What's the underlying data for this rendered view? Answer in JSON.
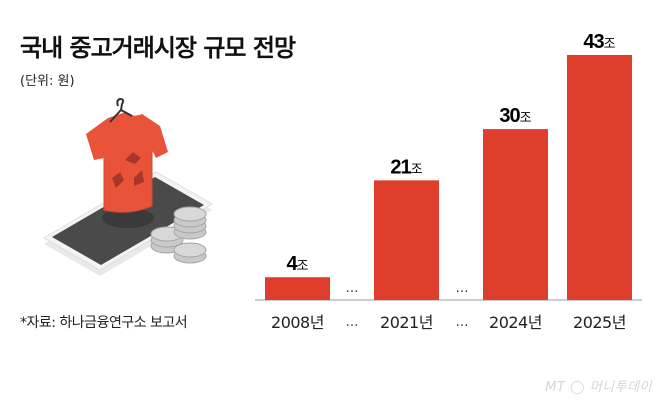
{
  "header": {
    "title": "국내 중고거래시장 규모 전망",
    "unit": "(단위: 원)"
  },
  "source": "*자료: 하나금융연구소 보고서",
  "logo": "MT 머니투데이",
  "colors": {
    "bar": "#de3e2b",
    "shirt": "#e8533a",
    "phone": "#4a4a4a",
    "coin": "#c8c8c8"
  },
  "icons": [
    "t-shirt-recycle-icon",
    "hanger-icon",
    "smartphone-icon",
    "coin-stack-icon"
  ],
  "chart_data": {
    "type": "bar",
    "title": "국내 중고거래시장 규모 전망",
    "unit": "(단위: 원)",
    "categories": [
      "2008년",
      "2021년",
      "2024년",
      "2025년"
    ],
    "values": [
      4,
      21,
      30,
      43
    ],
    "data_labels": [
      {
        "num": "4",
        "suffix": "조"
      },
      {
        "num": "21",
        "suffix": "조"
      },
      {
        "num": "30",
        "suffix": "조"
      },
      {
        "num": "43",
        "suffix": "조"
      }
    ],
    "gap_marker": "…",
    "ylim": [
      0,
      43
    ],
    "grid": false,
    "legend": "none"
  }
}
